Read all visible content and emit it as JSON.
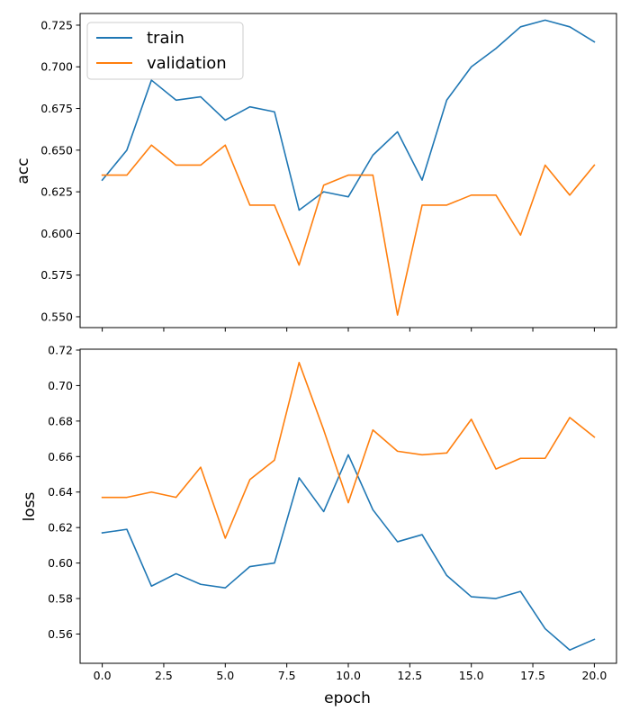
{
  "chart_data": [
    {
      "type": "line",
      "ylabel": "acc",
      "xlabel": "",
      "xlim": [
        -0.9,
        20.9
      ],
      "ylim": [
        0.5435,
        0.732
      ],
      "xticks": [
        "0.0",
        "2.5",
        "5.0",
        "7.5",
        "10.0",
        "12.5",
        "15.0",
        "17.5",
        "20.0"
      ],
      "xtick_values": [
        0,
        2.5,
        5,
        7.5,
        10,
        12.5,
        15,
        17.5,
        20
      ],
      "show_xtick_labels": false,
      "yticks": [
        "0.550",
        "0.575",
        "0.600",
        "0.625",
        "0.650",
        "0.675",
        "0.700",
        "0.725"
      ],
      "ytick_values": [
        0.55,
        0.575,
        0.6,
        0.625,
        0.65,
        0.675,
        0.7,
        0.725
      ],
      "legend": "top-left",
      "grid": false,
      "x": [
        0,
        1,
        2,
        3,
        4,
        5,
        6,
        7,
        8,
        9,
        10,
        11,
        12,
        13,
        14,
        15,
        16,
        17,
        18,
        19,
        20
      ],
      "series": [
        {
          "name": "train",
          "color": "#1f77b4",
          "values": [
            0.632,
            0.65,
            0.692,
            0.68,
            0.682,
            0.668,
            0.676,
            0.673,
            0.614,
            0.625,
            0.622,
            0.647,
            0.661,
            0.632,
            0.68,
            0.7,
            0.711,
            0.724,
            0.728,
            0.724,
            0.715
          ]
        },
        {
          "name": "validation",
          "color": "#ff7f0e",
          "values": [
            0.635,
            0.635,
            0.653,
            0.641,
            0.641,
            0.653,
            0.617,
            0.617,
            0.581,
            0.629,
            0.635,
            0.635,
            0.551,
            0.617,
            0.617,
            0.623,
            0.623,
            0.599,
            0.641,
            0.623,
            0.641
          ]
        }
      ]
    },
    {
      "type": "line",
      "ylabel": "loss",
      "xlabel": "epoch",
      "xlim": [
        -0.9,
        20.9
      ],
      "ylim": [
        0.5435,
        0.7205
      ],
      "xticks": [
        "0.0",
        "2.5",
        "5.0",
        "7.5",
        "10.0",
        "12.5",
        "15.0",
        "17.5",
        "20.0"
      ],
      "xtick_values": [
        0,
        2.5,
        5,
        7.5,
        10,
        12.5,
        15,
        17.5,
        20
      ],
      "show_xtick_labels": true,
      "yticks": [
        "0.56",
        "0.58",
        "0.60",
        "0.62",
        "0.64",
        "0.66",
        "0.68",
        "0.70",
        "0.72"
      ],
      "ytick_values": [
        0.56,
        0.58,
        0.6,
        0.62,
        0.64,
        0.66,
        0.68,
        0.7,
        0.72
      ],
      "grid": false,
      "x": [
        0,
        1,
        2,
        3,
        4,
        5,
        6,
        7,
        8,
        9,
        10,
        11,
        12,
        13,
        14,
        15,
        16,
        17,
        18,
        19,
        20
      ],
      "series": [
        {
          "name": "train",
          "color": "#1f77b4",
          "values": [
            0.617,
            0.619,
            0.587,
            0.594,
            0.588,
            0.586,
            0.598,
            0.6,
            0.648,
            0.629,
            0.661,
            0.63,
            0.612,
            0.616,
            0.593,
            0.581,
            0.58,
            0.584,
            0.563,
            0.551,
            0.557
          ]
        },
        {
          "name": "validation",
          "color": "#ff7f0e",
          "values": [
            0.637,
            0.637,
            0.64,
            0.637,
            0.654,
            0.614,
            0.647,
            0.658,
            0.713,
            0.675,
            0.634,
            0.675,
            0.663,
            0.661,
            0.662,
            0.681,
            0.653,
            0.659,
            0.659,
            0.682,
            0.671
          ]
        }
      ]
    }
  ]
}
